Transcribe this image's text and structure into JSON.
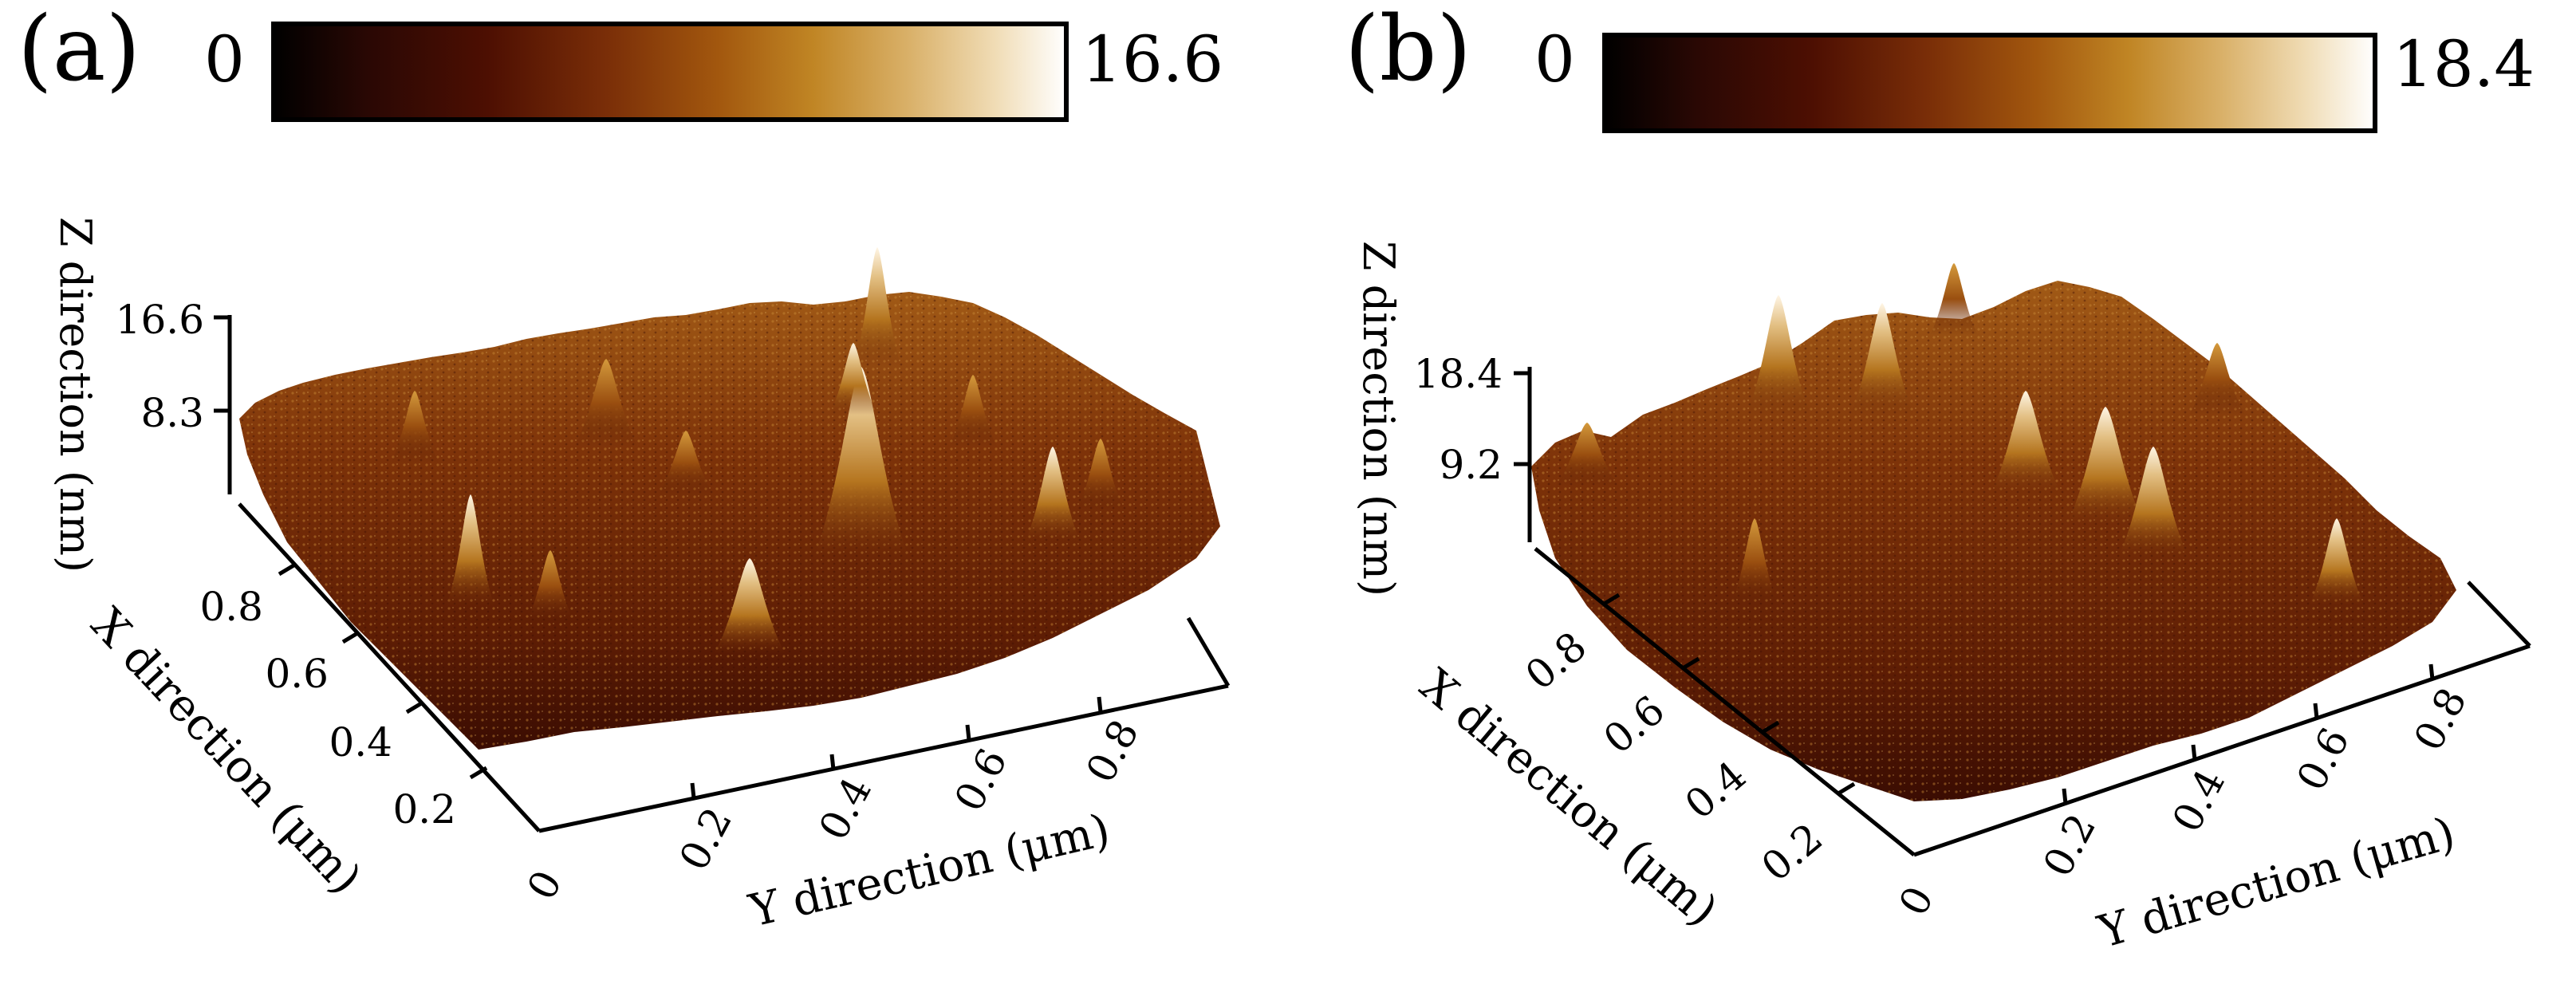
{
  "figure": {
    "colors": {
      "colormap": [
        "#000000",
        "#2a0804",
        "#4d0f02",
        "#7a2e08",
        "#a2570e",
        "#c08524",
        "#d9b068",
        "#f0dcb5",
        "#ffffff"
      ],
      "peak_highlight": "#fff6e6",
      "frame": "#000000"
    },
    "panels": [
      {
        "id": "a",
        "label": "(a)",
        "colorbar": {
          "min": "0",
          "max": "16.6"
        },
        "z_axis": {
          "title": "Z direction (nm)",
          "ticks": [
            "16.6",
            "8.3"
          ]
        },
        "x_axis": {
          "title": "X direction (μm)",
          "ticks": [
            "0.8",
            "0.6",
            "0.4",
            "0.2"
          ]
        },
        "y_axis": {
          "title": "Y direction (μm)",
          "ticks": [
            "0",
            "0.2",
            "0.4",
            "0.6",
            "0.8"
          ]
        },
        "surface_peak_count": 12
      },
      {
        "id": "b",
        "label": "(b)",
        "colorbar": {
          "min": "0",
          "max": "18.4"
        },
        "z_axis": {
          "title": "Z direction (nm)",
          "ticks": [
            "18.4",
            "9.2"
          ]
        },
        "x_axis": {
          "title": "X direction (μm)",
          "ticks": [
            "0.8",
            "0.6",
            "0.4",
            "0.2"
          ]
        },
        "y_axis": {
          "title": "Y direction (μm)",
          "ticks": [
            "0",
            "0.2",
            "0.4",
            "0.6",
            "0.8"
          ]
        },
        "surface_peak_count": 10
      }
    ]
  }
}
